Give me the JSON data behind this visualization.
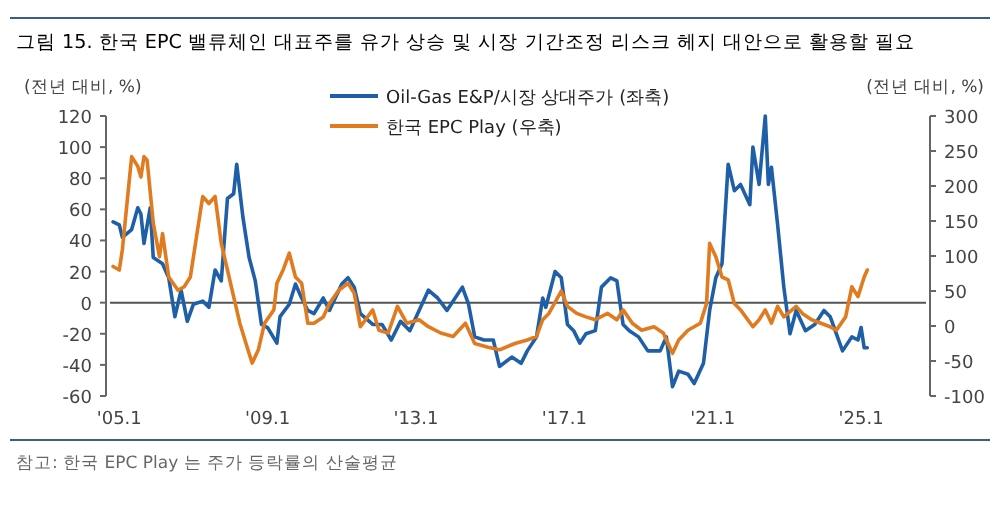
{
  "chart_data": {
    "type": "line",
    "title": "그림 15. 한국 EPC 밸류체인 대표주를 유가 상승 및 시장 기간조정 리스크 헤지 대안으로 활용할 필요",
    "ylabel": "(전년 대비, %)",
    "y2label": "(전년 대비, %)",
    "xlim": [
      "2004-10",
      "2026-10"
    ],
    "xticks": [
      {
        "value": "2005-01",
        "label": "'05.1"
      },
      {
        "value": "2009-01",
        "label": "'09.1"
      },
      {
        "value": "2013-01",
        "label": "'13.1"
      },
      {
        "value": "2017-01",
        "label": "'17.1"
      },
      {
        "value": "2021-01",
        "label": "'21.1"
      },
      {
        "value": "2025-01",
        "label": "'25.1"
      }
    ],
    "ylim": [
      -60,
      120
    ],
    "yticks": [
      -60,
      -40,
      -20,
      0,
      20,
      40,
      60,
      80,
      100,
      120
    ],
    "y2lim": [
      -100,
      300
    ],
    "y2ticks": [
      -100,
      -50,
      0,
      50,
      100,
      150,
      200,
      250,
      300
    ],
    "legend": "top",
    "ref_lines": [
      {
        "axis": "y",
        "value": 0,
        "color": "#555555"
      }
    ],
    "series": [
      {
        "name": "Oil-Gas E&P/시장 상대주가 (좌축)",
        "color": "#1f5fa8",
        "x": [
          "2004-11",
          "2005-01",
          "2005-02",
          "2005-05",
          "2005-07",
          "2005-08",
          "2005-09",
          "2005-11",
          "2005-12",
          "2006-03",
          "2006-05",
          "2006-07",
          "2006-09",
          "2006-11",
          "2007-01",
          "2007-04",
          "2007-06",
          "2007-08",
          "2007-10",
          "2007-12",
          "2008-02",
          "2008-03",
          "2008-05",
          "2008-07",
          "2008-09",
          "2008-11",
          "2009-01",
          "2009-04",
          "2009-05",
          "2009-08",
          "2009-10",
          "2009-12",
          "2010-02",
          "2010-04",
          "2010-07",
          "2010-09",
          "2011-01",
          "2011-03",
          "2011-05",
          "2011-07",
          "2011-11",
          "2012-02",
          "2012-05",
          "2012-08",
          "2012-11",
          "2013-02",
          "2013-05",
          "2013-08",
          "2013-11",
          "2014-04",
          "2014-06",
          "2014-08",
          "2014-11",
          "2015-02",
          "2015-04",
          "2015-08",
          "2015-11",
          "2016-01",
          "2016-04",
          "2016-06",
          "2016-07",
          "2016-10",
          "2016-12",
          "2017-02",
          "2017-04",
          "2017-06",
          "2017-08",
          "2017-11",
          "2018-01",
          "2018-04",
          "2018-06",
          "2018-08",
          "2018-10",
          "2019-01",
          "2019-04",
          "2019-08",
          "2019-10",
          "2019-12",
          "2020-02",
          "2020-05",
          "2020-07",
          "2020-10",
          "2020-12",
          "2021-02",
          "2021-04",
          "2021-06",
          "2021-08",
          "2021-10",
          "2022-01",
          "2022-02",
          "2022-04",
          "2022-06",
          "2022-07",
          "2022-08",
          "2022-10",
          "2022-12",
          "2023-02",
          "2023-04",
          "2023-07",
          "2023-10",
          "2024-01",
          "2024-03",
          "2024-07",
          "2024-10",
          "2024-12",
          "2025-01",
          "2025-02",
          "2025-03"
        ],
        "values": [
          52,
          50,
          42,
          47,
          61,
          57,
          38,
          61,
          29,
          25,
          16,
          -9,
          8,
          -12,
          -1,
          1,
          -3,
          21,
          14,
          67,
          70,
          89,
          55,
          29,
          14,
          -14,
          -16,
          -26,
          -9,
          -1,
          12,
          3,
          -5,
          -7,
          3,
          -5,
          12,
          16,
          10,
          -7,
          -14,
          -14,
          -24,
          -12,
          -18,
          -5,
          8,
          3,
          -5,
          10,
          -1,
          -22,
          -24,
          -24,
          -41,
          -35,
          -39,
          -31,
          -22,
          3,
          -3,
          20,
          16,
          -14,
          -18,
          -26,
          -20,
          -18,
          10,
          16,
          14,
          -14,
          -18,
          -22,
          -31,
          -31,
          -22,
          -54,
          -44,
          -46,
          -52,
          -39,
          -5,
          16,
          25,
          89,
          72,
          76,
          63,
          100,
          76,
          120,
          76,
          87,
          50,
          10,
          -20,
          -5,
          -18,
          -14,
          -5,
          -9,
          -31,
          -22,
          -24,
          -16,
          -29,
          -29
        ]
      },
      {
        "name": "한국 EPC Play (우축)",
        "color": "#e07b1f",
        "axis": "y2",
        "x": [
          "2004-11",
          "2005-01",
          "2005-02",
          "2005-05",
          "2005-07",
          "2005-08",
          "2005-09",
          "2005-10",
          "2005-12",
          "2006-02",
          "2006-03",
          "2006-05",
          "2006-08",
          "2006-10",
          "2006-12",
          "2007-02",
          "2007-04",
          "2007-06",
          "2007-08",
          "2007-10",
          "2007-12",
          "2008-02",
          "2008-04",
          "2008-06",
          "2008-08",
          "2008-10",
          "2008-12",
          "2009-03",
          "2009-04",
          "2009-06",
          "2009-08",
          "2009-10",
          "2009-12",
          "2010-02",
          "2010-04",
          "2010-07",
          "2010-09",
          "2010-12",
          "2011-03",
          "2011-05",
          "2011-07",
          "2011-11",
          "2012-01",
          "2012-04",
          "2012-07",
          "2012-10",
          "2013-02",
          "2013-05",
          "2013-09",
          "2014-01",
          "2014-05",
          "2014-08",
          "2014-12",
          "2015-04",
          "2015-09",
          "2016-01",
          "2016-04",
          "2016-06",
          "2016-08",
          "2016-12",
          "2017-02",
          "2017-05",
          "2017-08",
          "2017-11",
          "2018-03",
          "2018-06",
          "2018-08",
          "2018-11",
          "2019-02",
          "2019-06",
          "2019-09",
          "2019-12",
          "2020-02",
          "2020-05",
          "2020-09",
          "2020-11",
          "2020-12",
          "2021-02",
          "2021-04",
          "2021-06",
          "2021-08",
          "2021-10",
          "2022-02",
          "2022-04",
          "2022-06",
          "2022-08",
          "2022-10",
          "2022-12",
          "2023-04",
          "2023-06",
          "2023-09",
          "2023-12",
          "2024-03",
          "2024-05",
          "2024-08",
          "2024-10",
          "2024-12",
          "2025-02",
          "2025-03"
        ],
        "values": [
          85,
          80,
          109,
          242,
          228,
          213,
          242,
          237,
          147,
          99,
          132,
          70,
          51,
          56,
          70,
          128,
          185,
          175,
          185,
          118,
          80,
          42,
          4,
          -25,
          -53,
          -34,
          4,
          23,
          61,
          80,
          104,
          70,
          61,
          4,
          4,
          13,
          32,
          51,
          61,
          47,
          -1,
          23,
          -6,
          -10,
          28,
          4,
          9,
          -1,
          -10,
          -15,
          4,
          -25,
          -30,
          -34,
          -25,
          -20,
          -15,
          9,
          18,
          50,
          28,
          18,
          13,
          9,
          18,
          9,
          23,
          4,
          -6,
          -1,
          -10,
          -39,
          -20,
          -6,
          4,
          32,
          118,
          99,
          70,
          66,
          32,
          23,
          -1,
          9,
          23,
          4,
          28,
          13,
          28,
          18,
          9,
          4,
          -1,
          -6,
          13,
          56,
          42,
          70,
          80
        ]
      }
    ],
    "annotations": [
      "참고: 한국 EPC Play 는 주가 등락률의 산술평균"
    ]
  }
}
